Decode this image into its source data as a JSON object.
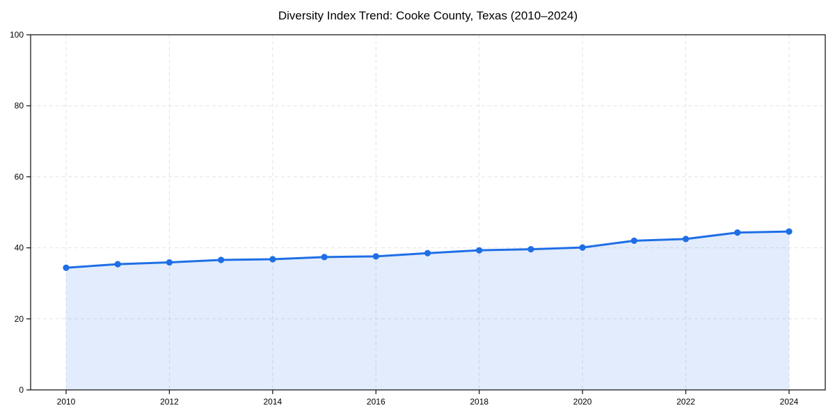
{
  "chart_data": {
    "type": "line",
    "title": "Diversity Index Trend: Cooke County, Texas (2010–2024)",
    "series_name": "Diversity Index",
    "x": [
      2010,
      2011,
      2012,
      2013,
      2014,
      2015,
      2016,
      2017,
      2018,
      2019,
      2020,
      2021,
      2022,
      2023,
      2024
    ],
    "values": [
      34.4,
      35.4,
      35.9,
      36.6,
      36.8,
      37.4,
      37.6,
      38.5,
      39.3,
      39.6,
      40.1,
      42.0,
      42.5,
      44.3,
      44.6
    ],
    "xlabel": "",
    "ylabel": "",
    "xlim": [
      2010,
      2024
    ],
    "ylim": [
      0,
      100
    ],
    "xticks": [
      2010,
      2012,
      2014,
      2016,
      2018,
      2020,
      2022,
      2024
    ],
    "yticks": [
      0,
      20,
      40,
      60,
      80,
      100
    ],
    "grid": true,
    "grid_style": "dashed",
    "legend": false,
    "marker": "circle",
    "area_fill": true,
    "style": {
      "line_color": "#1e6ee6",
      "marker_color": "#1e6ee6",
      "area_color": "rgba(30,110,230,0.13)",
      "grid_color": "#e3e3e3",
      "spine_color": "#1a1a1a",
      "text_color": "#000000",
      "background": "#ffffff"
    }
  }
}
